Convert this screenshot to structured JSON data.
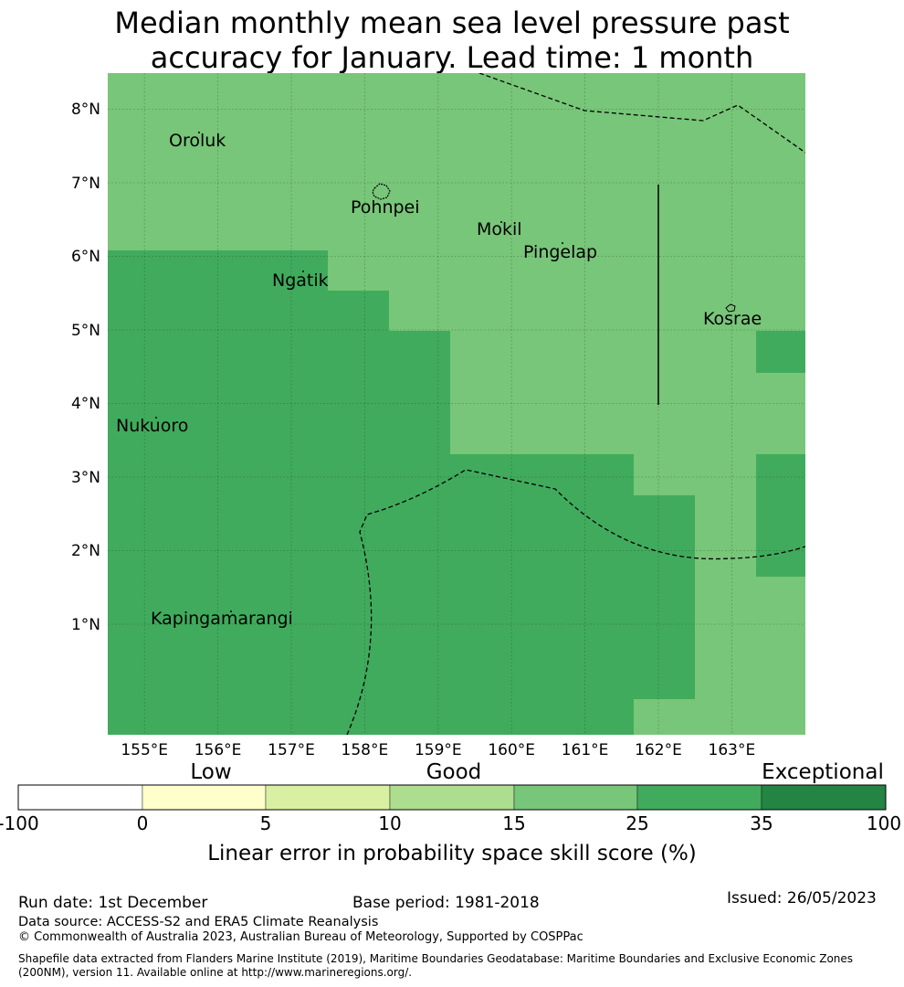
{
  "title": {
    "line1": "Median monthly mean sea level pressure past",
    "line2": "accuracy for January. Lead time: 1 month"
  },
  "map": {
    "lon_range": [
      154.5,
      164.0
    ],
    "lat_range": [
      -0.5,
      8.5
    ],
    "lon_ticks": [
      "155°E",
      "156°E",
      "157°E",
      "158°E",
      "159°E",
      "160°E",
      "161°E",
      "162°E",
      "163°E"
    ],
    "lat_ticks": [
      "1°N",
      "2°N",
      "3°N",
      "4°N",
      "5°N",
      "6°N",
      "7°N",
      "8°N"
    ],
    "places": [
      {
        "name": "Oroluk"
      },
      {
        "name": "Pohnpei"
      },
      {
        "name": "Mokil"
      },
      {
        "name": "Pingelap"
      },
      {
        "name": "Ngatik"
      },
      {
        "name": "Kosrae"
      },
      {
        "name": "Nukuoro"
      },
      {
        "name": "Kapingamarangi"
      }
    ]
  },
  "legend": {
    "categories": [
      "Low",
      "Good",
      "Exceptional"
    ],
    "ticks": [
      "-100",
      "0",
      "5",
      "10",
      "15",
      "25",
      "35",
      "100"
    ],
    "colors": [
      "#ffffff",
      "#ffffcc",
      "#d9f0a3",
      "#addd8e",
      "#78c679",
      "#41ab5d",
      "#238443"
    ],
    "label": "Linear error in probability space skill score (%)"
  },
  "chart_data": {
    "type": "heatmap",
    "title": "Median monthly mean sea level pressure past accuracy for January. Lead time: 1 month",
    "variable": "Linear error in probability space skill score (%)",
    "bins": [
      [
        -100,
        0
      ],
      [
        0,
        5
      ],
      [
        5,
        10
      ],
      [
        10,
        15
      ],
      [
        15,
        25
      ],
      [
        25,
        35
      ],
      [
        35,
        100
      ]
    ],
    "regions": [
      {
        "category": "15-25",
        "description": "Northern area including Oroluk, Pohnpei, Mokil, Pingelap, Kosrae"
      },
      {
        "category": "25-35",
        "description": "South-western and southern area including Ngatik, Nukuoro, Kapingamarangi"
      }
    ]
  },
  "footer": {
    "run_date": "Run date: 1st December",
    "base_period": "Base period: 1981-2018",
    "issued": "Issued: 26/05/2023",
    "data_source": "Data source: ACCESS-S2 and ERA5 Climate Reanalysis",
    "copyright": "© Commonwealth of Australia 2023, Australian Bureau of Meteorology, Supported by COSPPac",
    "shapefile": "Shapefile data extracted from Flanders Marine Institute (2019), Maritime Boundaries Geodatabase: Maritime Boundaries and Exclusive Economic Zones (200NM), version 11. Available online at http://www.marineregions.org/."
  }
}
